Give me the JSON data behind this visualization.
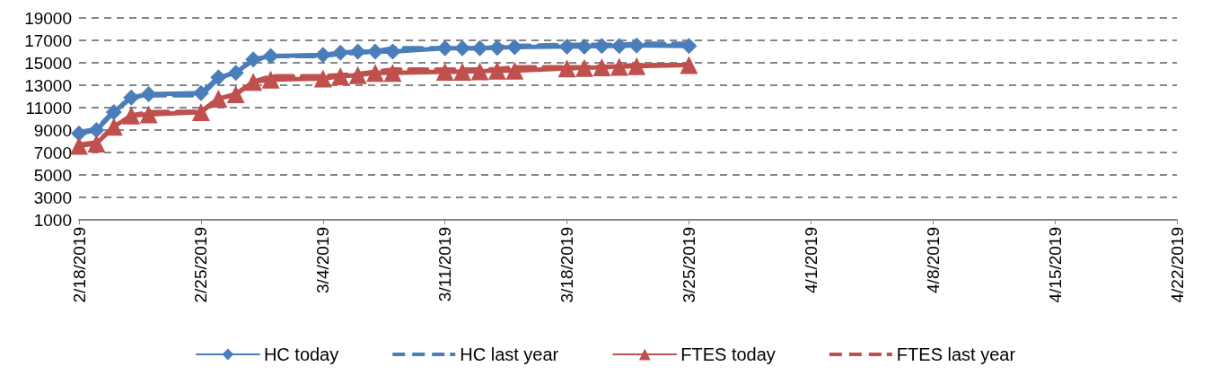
{
  "chart_data": {
    "type": "line",
    "x": [
      "2019-02-18",
      "2019-02-19",
      "2019-02-20",
      "2019-02-21",
      "2019-02-22",
      "2019-02-25",
      "2019-02-26",
      "2019-02-27",
      "2019-02-28",
      "2019-03-01",
      "2019-03-04",
      "2019-03-05",
      "2019-03-06",
      "2019-03-07",
      "2019-03-08",
      "2019-03-11",
      "2019-03-12",
      "2019-03-13",
      "2019-03-14",
      "2019-03-15",
      "2019-03-18",
      "2019-03-19",
      "2019-03-20",
      "2019-03-21",
      "2019-03-22",
      "2019-03-25"
    ],
    "series": [
      {
        "name": "HC today",
        "color": "#4a7ebb",
        "marker": "diamond",
        "line_style": "solid",
        "values": [
          8700,
          9000,
          10600,
          11900,
          12200,
          12300,
          13700,
          14100,
          15300,
          15600,
          15700,
          15900,
          16000,
          16000,
          16000,
          16300,
          16300,
          16300,
          16350,
          16400,
          16450,
          16450,
          16500,
          16500,
          16550,
          16500
        ]
      },
      {
        "name": "HC last year",
        "color": "#4a7ebb",
        "marker": "none",
        "line_style": "dashed",
        "values": [
          8800,
          9100,
          10700,
          11900,
          12100,
          12100,
          13600,
          14200,
          15200,
          15600,
          15600,
          15800,
          15900,
          16000,
          16300,
          16300,
          16300,
          16300,
          16400,
          16500,
          16600,
          16600,
          16600,
          16600,
          16700,
          16700
        ]
      },
      {
        "name": "FTES today",
        "color": "#c0504d",
        "marker": "triangle",
        "line_style": "solid",
        "values": [
          7600,
          7800,
          9300,
          10300,
          10400,
          10600,
          11800,
          12200,
          13300,
          13500,
          13600,
          13800,
          13900,
          14100,
          14100,
          14200,
          14200,
          14250,
          14300,
          14300,
          14500,
          14550,
          14600,
          14650,
          14700,
          14800
        ]
      },
      {
        "name": "FTES last year",
        "color": "#c0504d",
        "marker": "none",
        "line_style": "dashed",
        "values": [
          7700,
          7900,
          9300,
          10300,
          10600,
          10650,
          11800,
          12200,
          13300,
          13800,
          13800,
          13900,
          14000,
          14200,
          14400,
          14400,
          14400,
          14400,
          14450,
          14600,
          14600,
          14600,
          14650,
          14700,
          14800,
          14800
        ]
      }
    ],
    "xlim": [
      "2019-02-18",
      "2019-04-22"
    ],
    "xticks": [
      {
        "value": "2019-02-18",
        "label": "2/18/2019"
      },
      {
        "value": "2019-02-25",
        "label": "2/25/2019"
      },
      {
        "value": "2019-03-04",
        "label": "3/4/2019"
      },
      {
        "value": "2019-03-11",
        "label": "3/11/2019"
      },
      {
        "value": "2019-03-18",
        "label": "3/18/2019"
      },
      {
        "value": "2019-03-25",
        "label": "3/25/2019"
      },
      {
        "value": "2019-04-01",
        "label": "4/1/2019"
      },
      {
        "value": "2019-04-08",
        "label": "4/8/2019"
      },
      {
        "value": "2019-04-15",
        "label": "4/15/2019"
      },
      {
        "value": "2019-04-22",
        "label": "4/22/2019"
      }
    ],
    "ylim": [
      1000,
      19000
    ],
    "yticks": [
      1000,
      3000,
      5000,
      7000,
      9000,
      11000,
      13000,
      15000,
      17000,
      19000
    ],
    "grid": "y",
    "legend": "bottom"
  }
}
